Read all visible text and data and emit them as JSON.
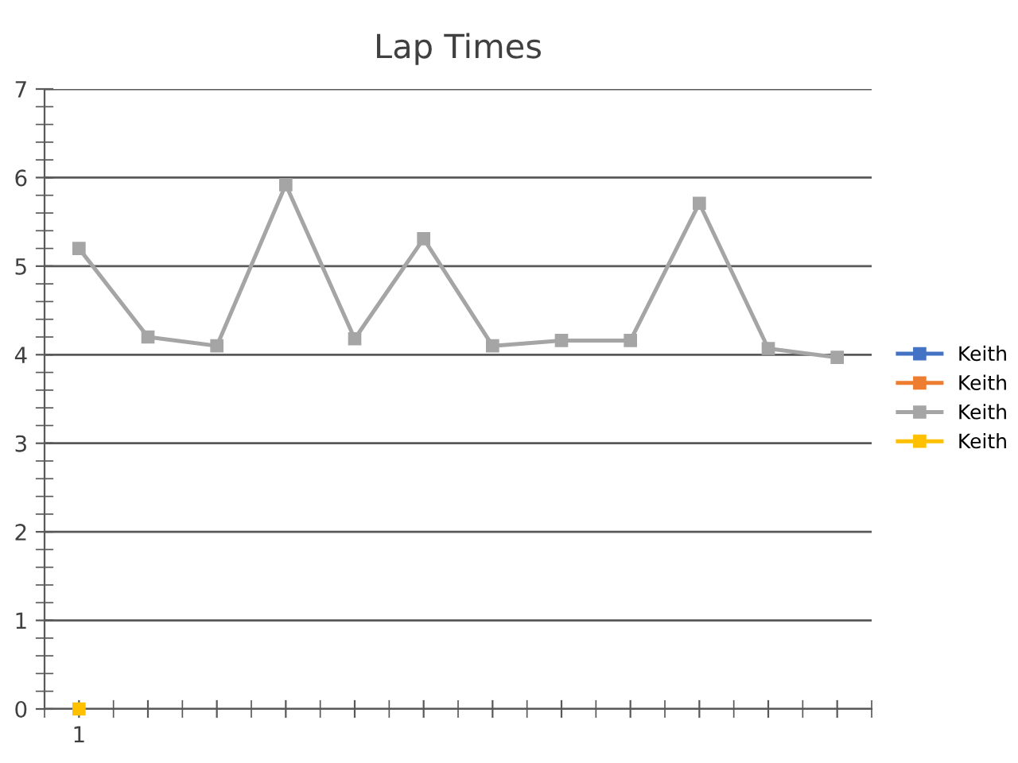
{
  "chart_data": {
    "type": "line",
    "title": "Lap Times",
    "categories": [
      "1",
      null,
      null,
      null,
      null,
      null,
      null,
      null,
      null,
      null,
      null,
      null
    ],
    "series": [
      {
        "name": "Keith",
        "color": "#4472c4",
        "values": [
          null,
          null,
          null,
          null,
          null,
          null,
          null,
          null,
          null,
          null,
          null,
          null
        ]
      },
      {
        "name": "Keith",
        "color": "#ed7d31",
        "values": [
          null,
          null,
          null,
          null,
          null,
          null,
          null,
          null,
          null,
          null,
          null,
          null
        ]
      },
      {
        "name": "Keith",
        "color": "#a5a5a5",
        "values": [
          5.2,
          4.2,
          4.1,
          5.92,
          4.18,
          5.31,
          4.1,
          4.16,
          4.16,
          5.71,
          4.07,
          3.97
        ]
      },
      {
        "name": "Keith",
        "color": "#ffc000",
        "values": [
          0,
          null,
          null,
          null,
          null,
          null,
          null,
          null,
          null,
          null,
          null,
          null
        ]
      }
    ],
    "ylim": [
      0,
      7
    ],
    "yticks": [
      0,
      1,
      2,
      3,
      4,
      5,
      6,
      7
    ],
    "grid": "y",
    "legend": "right",
    "marker": "square"
  }
}
